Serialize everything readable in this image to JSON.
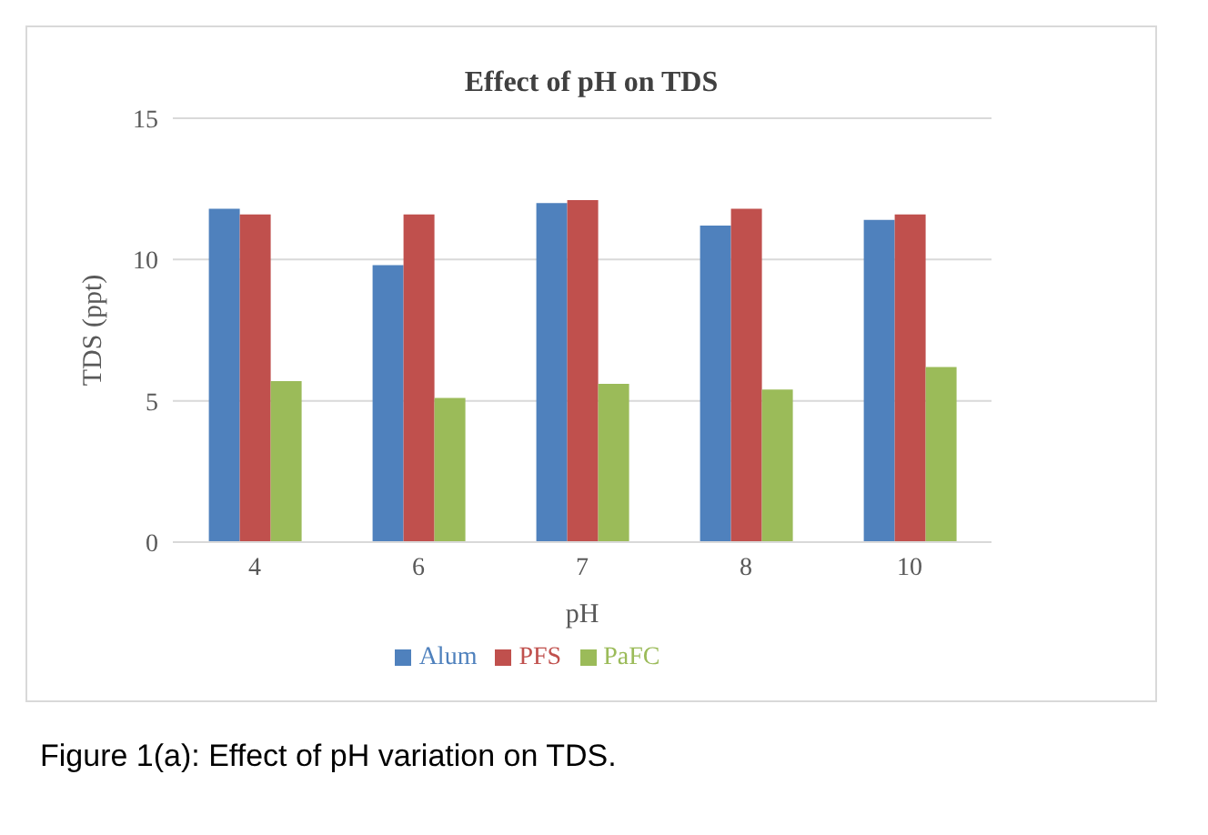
{
  "chart_data": {
    "type": "bar",
    "title": "Effect of pH on TDS",
    "xlabel": "pH",
    "ylabel": "TDS (ppt)",
    "categories": [
      "4",
      "6",
      "7",
      "8",
      "10"
    ],
    "series": [
      {
        "name": "Alum",
        "color": "#4f81bd",
        "values": [
          11.8,
          9.8,
          12,
          11.2,
          11.4
        ]
      },
      {
        "name": "PFS",
        "color": "#c0504d",
        "values": [
          11.6,
          11.6,
          12.1,
          11.8,
          11.6
        ]
      },
      {
        "name": "PaFC",
        "color": "#9bbb59",
        "values": [
          5.7,
          5.1,
          5.6,
          5.4,
          6.2
        ]
      }
    ],
    "ylim": [
      0,
      15
    ],
    "yticks": [
      0,
      5,
      10,
      15
    ],
    "grid": "y",
    "legend": "bottom",
    "annotations": [
      "Figure 1(a): Effect of pH variation on TDS."
    ]
  }
}
